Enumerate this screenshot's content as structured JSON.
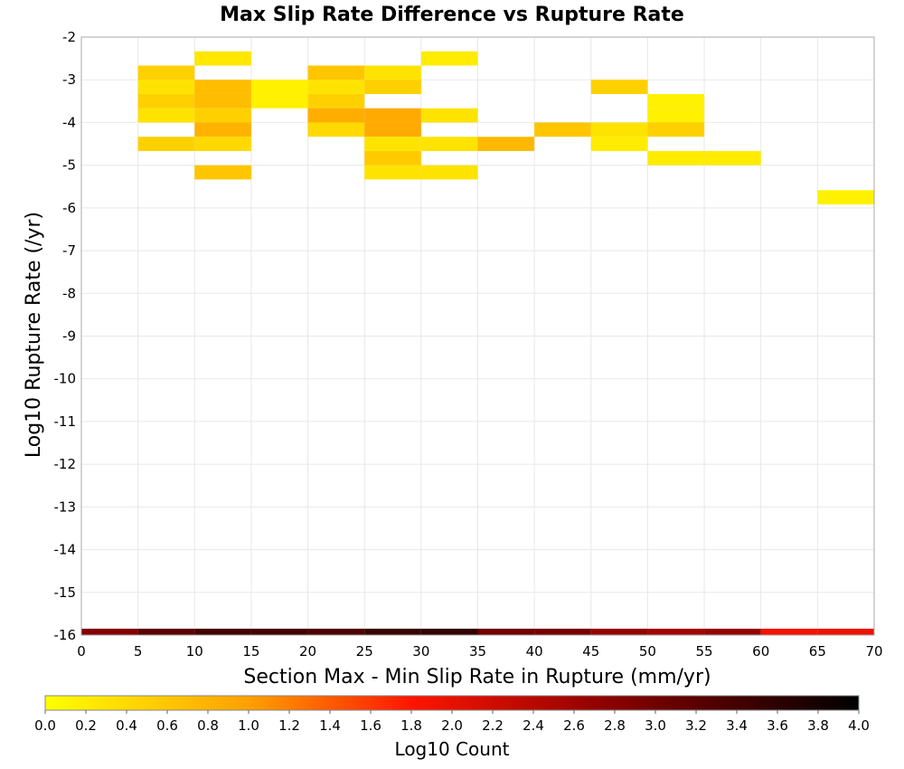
{
  "chart_data": {
    "type": "heatmap",
    "title": "Max Slip Rate Difference vs Rupture Rate",
    "xlabel": "Section Max - Min Slip Rate in Rupture (mm/yr)",
    "ylabel": "Log10 Rupture Rate (/yr)",
    "xlim": [
      0,
      70
    ],
    "ylim": [
      -16,
      -2
    ],
    "x_ticks": [
      0,
      5,
      10,
      15,
      20,
      25,
      30,
      35,
      40,
      45,
      50,
      55,
      60,
      65,
      70
    ],
    "y_ticks": [
      -2,
      -3,
      -4,
      -5,
      -6,
      -7,
      -8,
      -9,
      -10,
      -11,
      -12,
      -13,
      -14,
      -15,
      -16
    ],
    "x_bin_width": 5,
    "y_bin_height": 0.3333,
    "grid": true,
    "colorbar": {
      "label": "Log10 Count",
      "range": [
        0.0,
        4.0
      ],
      "ticks": [
        "0.0",
        "0.2",
        "0.4",
        "0.6",
        "0.8",
        "1.0",
        "1.2",
        "1.4",
        "1.6",
        "1.8",
        "2.0",
        "2.2",
        "2.4",
        "2.6",
        "2.8",
        "3.0",
        "3.2",
        "3.4",
        "3.6",
        "3.8",
        "4.0"
      ],
      "colors": [
        "#ffff00",
        "#ffa000",
        "#ff1500",
        "#880000",
        "#000000"
      ],
      "color_stops": [
        0.0,
        1.0,
        1.8,
        2.8,
        4.0
      ]
    },
    "cells": [
      {
        "x": 10,
        "y": -2.667,
        "value": 0.25
      },
      {
        "x": 30,
        "y": -2.667,
        "value": 0.2
      },
      {
        "x": 5,
        "y": -3.0,
        "value": 0.5
      },
      {
        "x": 20,
        "y": -3.0,
        "value": 0.6
      },
      {
        "x": 25,
        "y": -3.0,
        "value": 0.3
      },
      {
        "x": 5,
        "y": -3.333,
        "value": 0.3
      },
      {
        "x": 10,
        "y": -3.333,
        "value": 0.7
      },
      {
        "x": 15,
        "y": -3.333,
        "value": 0.15
      },
      {
        "x": 20,
        "y": -3.333,
        "value": 0.3
      },
      {
        "x": 25,
        "y": -3.333,
        "value": 0.5
      },
      {
        "x": 45,
        "y": -3.333,
        "value": 0.5
      },
      {
        "x": 5,
        "y": -3.667,
        "value": 0.5
      },
      {
        "x": 10,
        "y": -3.667,
        "value": 0.7
      },
      {
        "x": 15,
        "y": -3.667,
        "value": 0.15
      },
      {
        "x": 20,
        "y": -3.667,
        "value": 0.5
      },
      {
        "x": 50,
        "y": -3.667,
        "value": 0.15
      },
      {
        "x": 5,
        "y": -4.0,
        "value": 0.3
      },
      {
        "x": 10,
        "y": -4.0,
        "value": 0.5
      },
      {
        "x": 20,
        "y": -4.0,
        "value": 0.85
      },
      {
        "x": 25,
        "y": -4.0,
        "value": 0.9
      },
      {
        "x": 30,
        "y": -4.0,
        "value": 0.3
      },
      {
        "x": 50,
        "y": -4.0,
        "value": 0.15
      },
      {
        "x": 10,
        "y": -4.333,
        "value": 0.8
      },
      {
        "x": 20,
        "y": -4.333,
        "value": 0.4
      },
      {
        "x": 25,
        "y": -4.333,
        "value": 0.9
      },
      {
        "x": 40,
        "y": -4.333,
        "value": 0.6
      },
      {
        "x": 45,
        "y": -4.333,
        "value": 0.3
      },
      {
        "x": 50,
        "y": -4.333,
        "value": 0.5
      },
      {
        "x": 5,
        "y": -4.667,
        "value": 0.5
      },
      {
        "x": 10,
        "y": -4.667,
        "value": 0.4
      },
      {
        "x": 25,
        "y": -4.667,
        "value": 0.3
      },
      {
        "x": 30,
        "y": -4.667,
        "value": 0.3
      },
      {
        "x": 35,
        "y": -4.667,
        "value": 0.75
      },
      {
        "x": 45,
        "y": -4.667,
        "value": 0.2
      },
      {
        "x": 25,
        "y": -5.0,
        "value": 0.55
      },
      {
        "x": 50,
        "y": -5.0,
        "value": 0.2
      },
      {
        "x": 55,
        "y": -5.0,
        "value": 0.2
      },
      {
        "x": 10,
        "y": -5.333,
        "value": 0.6
      },
      {
        "x": 25,
        "y": -5.333,
        "value": 0.3
      },
      {
        "x": 30,
        "y": -5.333,
        "value": 0.3
      },
      {
        "x": 65,
        "y": -5.917,
        "value": 0.15,
        "h": 0.3333
      },
      {
        "x": 0,
        "y": -16.0,
        "value": 2.85,
        "h": 0.15
      },
      {
        "x": 5,
        "y": -16.0,
        "value": 3.2,
        "h": 0.15
      },
      {
        "x": 10,
        "y": -16.0,
        "value": 3.4,
        "h": 0.15
      },
      {
        "x": 15,
        "y": -16.0,
        "value": 3.4,
        "h": 0.15
      },
      {
        "x": 20,
        "y": -16.0,
        "value": 3.3,
        "h": 0.15
      },
      {
        "x": 25,
        "y": -16.0,
        "value": 3.5,
        "h": 0.15
      },
      {
        "x": 30,
        "y": -16.0,
        "value": 3.55,
        "h": 0.15
      },
      {
        "x": 35,
        "y": -16.0,
        "value": 3.0,
        "h": 0.15
      },
      {
        "x": 40,
        "y": -16.0,
        "value": 2.95,
        "h": 0.15
      },
      {
        "x": 45,
        "y": -16.0,
        "value": 2.7,
        "h": 0.15
      },
      {
        "x": 50,
        "y": -16.0,
        "value": 2.6,
        "h": 0.15
      },
      {
        "x": 55,
        "y": -16.0,
        "value": 2.7,
        "h": 0.15
      },
      {
        "x": 60,
        "y": -16.0,
        "value": 1.9,
        "h": 0.15
      },
      {
        "x": 65,
        "y": -16.0,
        "value": 1.95,
        "h": 0.15
      }
    ]
  }
}
